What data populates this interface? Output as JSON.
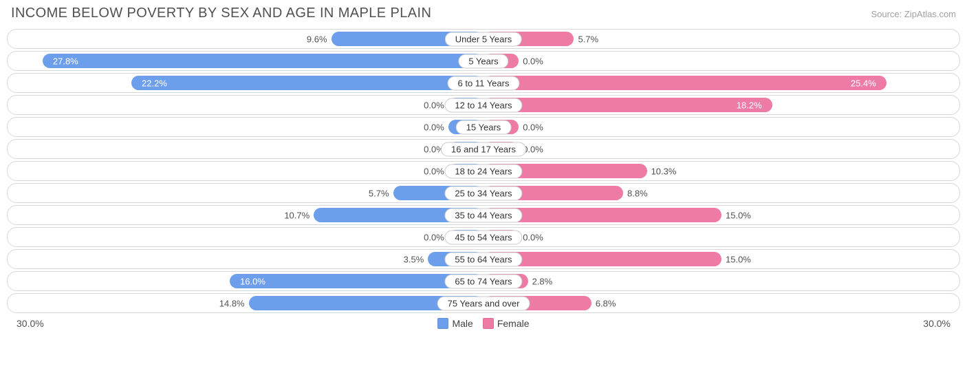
{
  "title": "INCOME BELOW POVERTY BY SEX AND AGE IN MAPLE PLAIN",
  "source": "Source: ZipAtlas.com",
  "axis_max": 30.0,
  "axis_label_left": "30.0%",
  "axis_label_right": "30.0%",
  "min_bar_pct": 3.7,
  "colors": {
    "male": "#6d9eeb",
    "female": "#ed7ba6",
    "row_border": "#d8d8d8",
    "pill_border": "#c8c8c8",
    "text": "#505050",
    "inside_text": "#ffffff",
    "background": "#ffffff"
  },
  "legend": {
    "male_label": "Male",
    "female_label": "Female"
  },
  "rows": [
    {
      "label": "Under 5 Years",
      "male": 9.6,
      "female": 5.7
    },
    {
      "label": "5 Years",
      "male": 27.8,
      "female": 0.0
    },
    {
      "label": "6 to 11 Years",
      "male": 22.2,
      "female": 25.4
    },
    {
      "label": "12 to 14 Years",
      "male": 0.0,
      "female": 18.2
    },
    {
      "label": "15 Years",
      "male": 0.0,
      "female": 0.0
    },
    {
      "label": "16 and 17 Years",
      "male": 0.0,
      "female": 0.0
    },
    {
      "label": "18 to 24 Years",
      "male": 0.0,
      "female": 10.3
    },
    {
      "label": "25 to 34 Years",
      "male": 5.7,
      "female": 8.8
    },
    {
      "label": "35 to 44 Years",
      "male": 10.7,
      "female": 15.0
    },
    {
      "label": "45 to 54 Years",
      "male": 0.0,
      "female": 0.0
    },
    {
      "label": "55 to 64 Years",
      "male": 3.5,
      "female": 15.0
    },
    {
      "label": "65 to 74 Years",
      "male": 16.0,
      "female": 2.8
    },
    {
      "label": "75 Years and over",
      "male": 14.8,
      "female": 6.8
    }
  ]
}
